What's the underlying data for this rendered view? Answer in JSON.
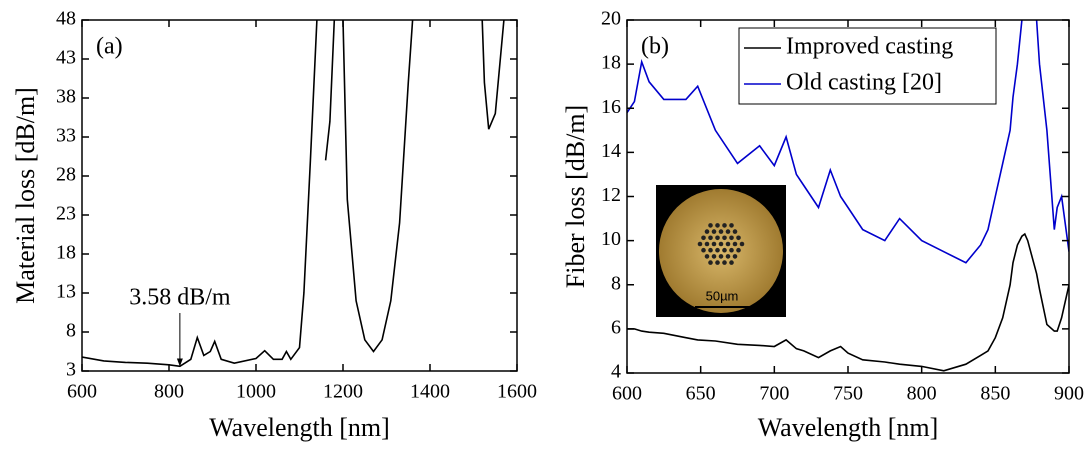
{
  "chart_data": [
    {
      "type": "line",
      "panel_label": "(a)",
      "x_label": "Wavelength [nm]",
      "y_label": "Material loss [dB/m]",
      "xlim": [
        600,
        1600
      ],
      "ylim": [
        3,
        48
      ],
      "xticks": [
        600,
        800,
        1000,
        1200,
        1400,
        1600
      ],
      "yticks": [
        3,
        8,
        13,
        18,
        23,
        28,
        33,
        38,
        43,
        48
      ],
      "color": "#000000",
      "x": [
        600,
        650,
        700,
        750,
        800,
        825,
        850,
        865,
        880,
        895,
        905,
        920,
        950,
        1000,
        1020,
        1040,
        1060,
        1070,
        1080,
        1100,
        1110,
        1125,
        1140,
        1150,
        1160,
        1170,
        1180,
        1190,
        1200,
        1210,
        1230,
        1250,
        1270,
        1290,
        1310,
        1330,
        1350,
        1360,
        1440,
        1520,
        1525,
        1535,
        1550,
        1570
      ],
      "values": [
        4.8,
        4.3,
        4.1,
        4.0,
        3.8,
        3.6,
        4.5,
        7.3,
        5.0,
        5.5,
        6.8,
        4.5,
        4.0,
        4.6,
        5.6,
        4.5,
        4.5,
        5.5,
        4.5,
        6,
        13,
        30,
        48,
        null,
        30,
        35,
        48,
        null,
        48,
        25,
        12,
        7,
        5.5,
        7,
        12,
        22,
        40,
        48,
        null,
        48,
        40,
        34,
        36,
        48
      ],
      "annotation": {
        "text": "3.58 dB/m",
        "x": 825,
        "y": 3.58
      }
    },
    {
      "type": "line",
      "panel_label": "(b)",
      "x_label": "Wavelength [nm]",
      "y_label": "Fiber loss [dB/m]",
      "xlim": [
        600,
        900
      ],
      "ylim": [
        4,
        20
      ],
      "xticks": [
        600,
        650,
        700,
        750,
        800,
        850,
        900
      ],
      "yticks": [
        4,
        6,
        8,
        10,
        12,
        14,
        16,
        18,
        20
      ],
      "inset_label": "50µm",
      "x": [
        600,
        605,
        610,
        615,
        625,
        640,
        648,
        660,
        675,
        690,
        700,
        708,
        715,
        720,
        730,
        738,
        745,
        750,
        760,
        775,
        785,
        800,
        815,
        830,
        840,
        845,
        850,
        855,
        860,
        862,
        865,
        868,
        870,
        872,
        878,
        880,
        885,
        890,
        892,
        895,
        900
      ],
      "series": [
        {
          "name": "Improved casting",
          "color": "#000000",
          "values": [
            6.0,
            6.0,
            5.9,
            5.85,
            5.8,
            5.6,
            5.5,
            5.45,
            5.3,
            5.25,
            5.2,
            5.5,
            5.1,
            5.0,
            4.7,
            5.0,
            5.2,
            4.9,
            4.6,
            4.5,
            4.4,
            4.3,
            4.1,
            4.4,
            4.8,
            5.0,
            5.6,
            6.5,
            8.0,
            9.0,
            9.8,
            10.2,
            10.3,
            10.0,
            8.5,
            7.8,
            6.2,
            5.9,
            5.9,
            6.5,
            8.0
          ]
        },
        {
          "name": "Old casting [20]",
          "color": "#0000cc",
          "values": [
            15.8,
            16.3,
            18.1,
            17.2,
            16.4,
            16.4,
            17.0,
            15.0,
            13.5,
            14.3,
            13.4,
            14.7,
            13.0,
            12.5,
            11.5,
            13.2,
            12.0,
            11.5,
            10.5,
            10.0,
            11.0,
            10.0,
            9.5,
            9.0,
            9.8,
            10.5,
            12.0,
            13.5,
            15.0,
            16.5,
            18.0,
            20.0,
            null,
            null,
            20.0,
            18.0,
            15.0,
            10.5,
            11.5,
            12.0,
            9.5
          ]
        }
      ]
    }
  ]
}
